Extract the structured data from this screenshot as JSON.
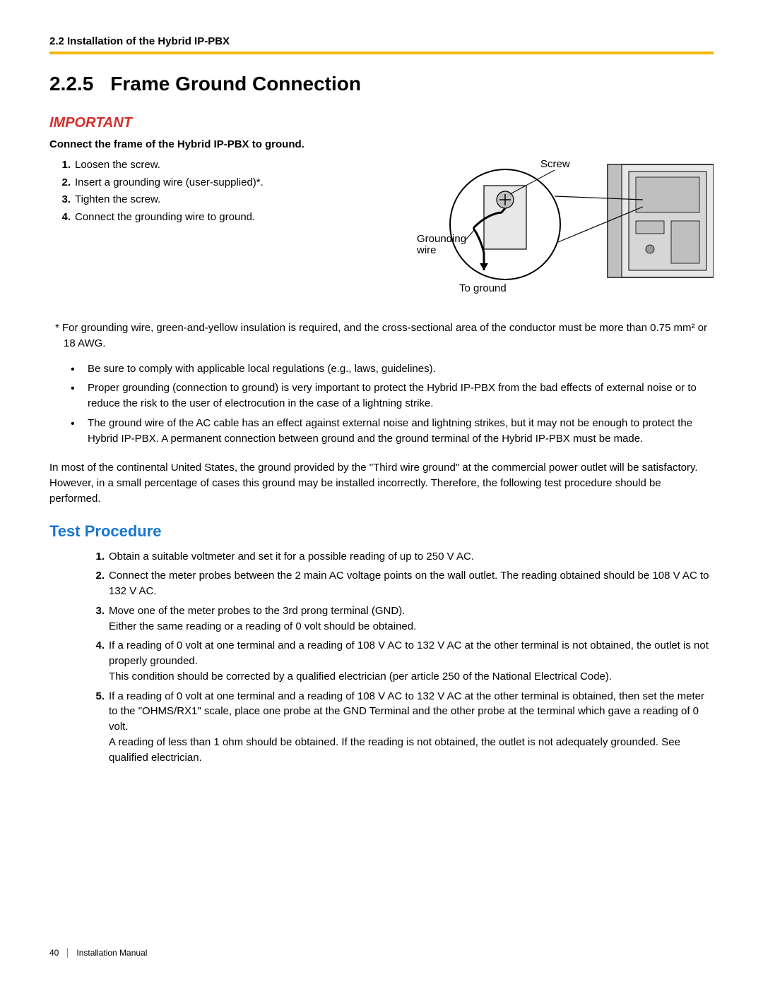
{
  "header": {
    "breadcrumb": "2.2 Installation of the Hybrid IP-PBX",
    "rule_color": "#f7b500"
  },
  "section": {
    "number": "2.2.5",
    "title": "Frame Ground Connection"
  },
  "important": {
    "label": "IMPORTANT",
    "label_color": "#d32f2f",
    "instruction": "Connect the frame of the Hybrid IP-PBX to ground.",
    "steps": [
      "Loosen the screw.",
      "Insert a grounding wire (user-supplied)*.",
      "Tighten the screw.",
      "Connect the grounding wire to ground."
    ]
  },
  "diagram": {
    "labels": {
      "screw": "Screw",
      "grounding_wire": "Grounding wire",
      "to_ground": "To ground"
    },
    "colors": {
      "stroke": "#000000",
      "fill_light": "#e8e8e8",
      "fill_mid": "#c0c0c0",
      "fill_dark": "#9a9a9a"
    }
  },
  "footnote": "*  For grounding wire, green-and-yellow insulation is required, and the cross-sectional area of the conductor must be more than 0.75 mm² or 18 AWG.",
  "bullets": [
    "Be sure to comply with applicable local regulations (e.g., laws, guidelines).",
    "Proper grounding (connection to ground) is very important to protect the Hybrid IP-PBX from the bad effects of external noise or to reduce the risk to the user of electrocution in the case of a lightning strike.",
    "The ground wire of the AC cable has an effect against external noise and lightning strikes, but it may not be enough to protect the Hybrid IP-PBX. A permanent connection between ground and the ground terminal of the Hybrid IP-PBX must be made."
  ],
  "paragraph": "In most of the continental United States, the ground provided by the \"Third wire ground\" at the commercial power outlet will be satisfactory. However, in a small percentage of cases this ground may be installed incorrectly. Therefore, the following test procedure should be performed.",
  "test_procedure": {
    "heading": "Test Procedure",
    "heading_color": "#1976d2",
    "steps": [
      "Obtain a suitable voltmeter and set it for a possible reading of up to 250 V AC.",
      "Connect the meter probes between the 2 main AC voltage points on the wall outlet. The reading obtained should be 108 V AC to 132 V AC.",
      "Move one of the meter probes to the 3rd prong terminal (GND).\nEither the same reading or a reading of 0 volt should be obtained.",
      "If a reading of 0 volt at one terminal and a reading of 108 V AC to 132 V AC at the other terminal is not obtained, the outlet is not properly grounded.\nThis condition should be corrected by a qualified electrician (per article 250 of the National Electrical Code).",
      "If a reading of 0 volt at one terminal and a reading of 108 V AC to 132 V AC at the other terminal is obtained, then set the meter to the \"OHMS/RX1\" scale, place one probe at the GND Terminal and the other probe at the terminal which gave a reading of 0 volt.\nA reading of less than 1 ohm should be obtained. If the reading is not obtained, the outlet is not adequately grounded. See qualified electrician."
    ]
  },
  "footer": {
    "page_number": "40",
    "doc_title": "Installation Manual"
  }
}
